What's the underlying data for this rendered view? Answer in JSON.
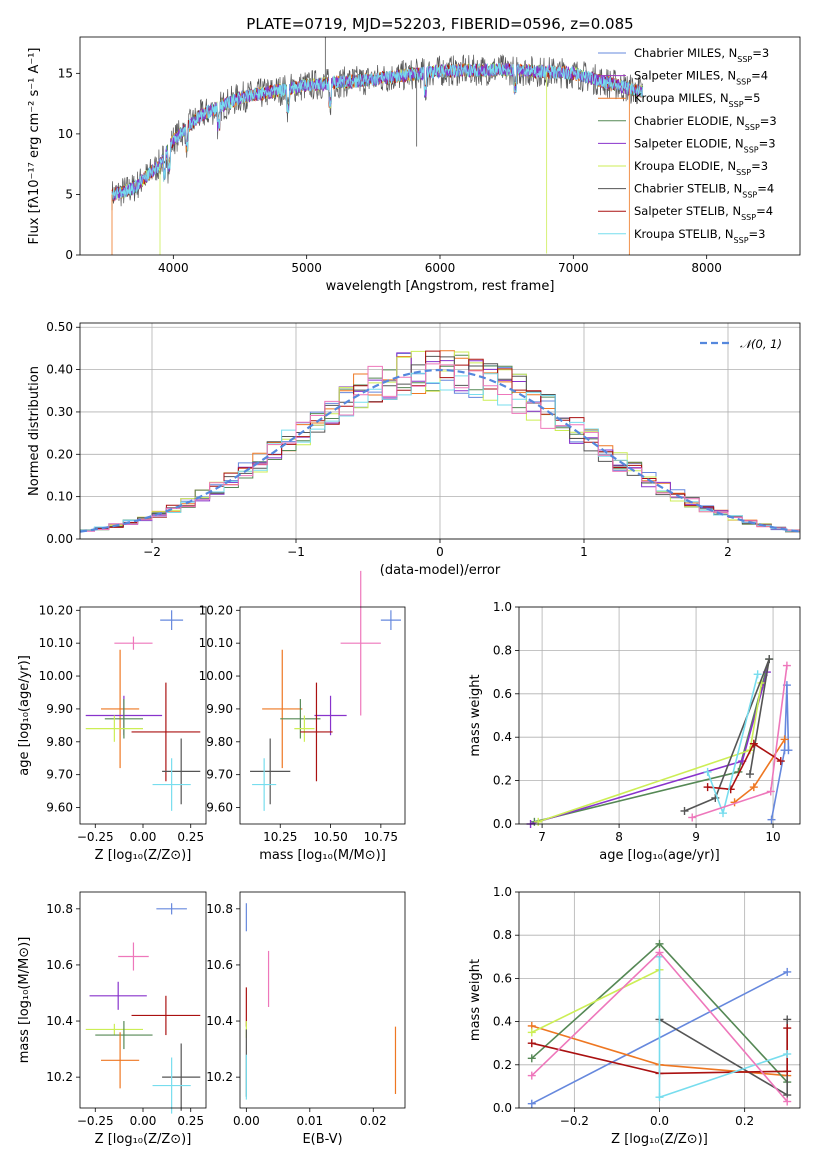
{
  "title": "PLATE=0719, MJD=52203, FIBERID=0596, z=0.085",
  "colors": {
    "Chabrier MILES": "#6688dd",
    "Salpeter MILES": "#9933bb",
    "Kroupa MILES": "#ee7722",
    "Chabrier ELODIE": "#558855",
    "Salpeter ELODIE": "#8833cc",
    "Kroupa ELODIE": "#ccee55",
    "Chabrier STELIB": "#555555",
    "Salpeter STELIB": "#aa1111",
    "Kroupa STELIB": "#77ddee",
    "extra": "#ee77bb",
    "gauss": "#5588dd"
  },
  "chart_data": [
    {
      "type": "line",
      "xlabel": "wavelength [Angstrom, rest frame]",
      "ylabel": "Flux [fλ10⁻¹⁷ erg cm⁻² s⁻¹ A⁻¹]",
      "xlim": [
        3300,
        8700
      ],
      "ylim": [
        0,
        18
      ],
      "xticks": [
        4000,
        5000,
        6000,
        7000,
        8000
      ],
      "yticks": [
        0,
        5,
        10,
        15
      ],
      "grid": false,
      "legend_position": "right",
      "legend": [
        {
          "name": "Chabrier MILES",
          "nssp": "3"
        },
        {
          "name": "Salpeter MILES",
          "nssp": "4"
        },
        {
          "name": "Kroupa MILES",
          "nssp": "5"
        },
        {
          "name": "Chabrier ELODIE",
          "nssp": "3"
        },
        {
          "name": "Salpeter ELODIE",
          "nssp": "3"
        },
        {
          "name": "Kroupa ELODIE",
          "nssp": "3"
        },
        {
          "name": "Chabrier STELIB",
          "nssp": "4"
        },
        {
          "name": "Salpeter STELIB",
          "nssp": "4"
        },
        {
          "name": "Kroupa STELIB",
          "nssp": "3"
        }
      ],
      "continuum": {
        "x": [
          3550,
          3700,
          3900,
          4000,
          4200,
          4500,
          5000,
          5500,
          6000,
          6500,
          7000,
          7500
        ],
        "y": [
          5,
          5.5,
          7.5,
          9.5,
          11.5,
          13.0,
          14.0,
          14.5,
          15.2,
          15.3,
          15.0,
          13.5
        ]
      }
    },
    {
      "type": "line",
      "xlabel": "(data-model)/error",
      "ylabel": "Normed distribution",
      "xlim": [
        -2.5,
        2.5
      ],
      "ylim": [
        0,
        0.51
      ],
      "xticks": [
        -2,
        -1,
        0,
        1,
        2
      ],
      "yticks": [
        0.0,
        0.1,
        0.2,
        0.3,
        0.4,
        0.5
      ],
      "grid": true,
      "legend_position": "top-right",
      "gauss_label": "𝒩(0, 1)"
    },
    {
      "type": "scatter",
      "xlabel": "Z [log₁₀(Z/Z⊙)]",
      "ylabel": "age  [log₁₀(age/yr)]",
      "xlim": [
        -0.33,
        0.33
      ],
      "ylim": [
        9.55,
        10.21
      ],
      "xticks": [
        -0.25,
        0.0,
        0.25
      ],
      "yticks": [
        9.6,
        9.7,
        9.8,
        9.9,
        10.0,
        10.1,
        10.2
      ],
      "grid": false,
      "points": [
        {
          "c": "Chabrier MILES",
          "x": 0.15,
          "y": 10.17,
          "ex": 0.06,
          "ey": 0.03
        },
        {
          "c": "extra",
          "x": -0.05,
          "y": 10.1,
          "ex": 0.1,
          "ey": 0.02
        },
        {
          "c": "Kroupa MILES",
          "x": -0.12,
          "y": 9.9,
          "ex": 0.1,
          "ey": 0.18
        },
        {
          "c": "Salpeter ELODIE",
          "x": -0.1,
          "y": 9.88,
          "ex": 0.2,
          "ey": 0.06
        },
        {
          "c": "Chabrier ELODIE",
          "x": -0.1,
          "y": 9.87,
          "ex": 0.1,
          "ey": 0.06
        },
        {
          "c": "Kroupa ELODIE",
          "x": -0.15,
          "y": 9.84,
          "ex": 0.15,
          "ey": 0.04
        },
        {
          "c": "Salpeter STELIB",
          "x": 0.12,
          "y": 9.83,
          "ex": 0.18,
          "ey": 0.15
        },
        {
          "c": "Chabrier STELIB",
          "x": 0.2,
          "y": 9.71,
          "ex": 0.1,
          "ey": 0.1
        },
        {
          "c": "Kroupa STELIB",
          "x": 0.15,
          "y": 9.67,
          "ex": 0.1,
          "ey": 0.08
        }
      ]
    },
    {
      "type": "scatter",
      "xlabel": "mass [log₁₀(M/M⊙)]",
      "ylabel": "",
      "xlim": [
        10.05,
        10.87
      ],
      "ylim": [
        9.55,
        10.21
      ],
      "xticks": [
        10.25,
        10.5,
        10.75
      ],
      "yticks": [
        9.6,
        9.7,
        9.8,
        9.9,
        10.0,
        10.1,
        10.2
      ],
      "grid": false,
      "points": [
        {
          "c": "Chabrier MILES",
          "x": 10.8,
          "y": 10.17,
          "ex": 0.05,
          "ey": 0.03
        },
        {
          "c": "extra",
          "x": 10.65,
          "y": 10.1,
          "ex": 0.1,
          "ey": 0.22
        },
        {
          "c": "Kroupa MILES",
          "x": 10.26,
          "y": 9.9,
          "ex": 0.1,
          "ey": 0.18
        },
        {
          "c": "Salpeter ELODIE",
          "x": 10.5,
          "y": 9.88,
          "ex": 0.08,
          "ey": 0.06
        },
        {
          "c": "Chabrier ELODIE",
          "x": 10.35,
          "y": 9.87,
          "ex": 0.1,
          "ey": 0.06
        },
        {
          "c": "Kroupa ELODIE",
          "x": 10.37,
          "y": 9.84,
          "ex": 0.05,
          "ey": 0.04
        },
        {
          "c": "Salpeter STELIB",
          "x": 10.43,
          "y": 9.83,
          "ex": 0.08,
          "ey": 0.15
        },
        {
          "c": "Chabrier STELIB",
          "x": 10.2,
          "y": 9.71,
          "ex": 0.1,
          "ey": 0.1
        },
        {
          "c": "Kroupa STELIB",
          "x": 10.17,
          "y": 9.67,
          "ex": 0.06,
          "ey": 0.08
        }
      ]
    },
    {
      "type": "line",
      "xlabel": "age  [log₁₀(age/yr)]",
      "ylabel": "mass weight",
      "xlim": [
        6.7,
        10.35
      ],
      "ylim": [
        0,
        1.0
      ],
      "xticks": [
        7,
        8,
        9,
        10
      ],
      "yticks": [
        0.0,
        0.2,
        0.4,
        0.6,
        0.8,
        1.0
      ],
      "grid": true,
      "series": [
        {
          "c": "Chabrier MILES",
          "x": [
            9.98,
            10.15,
            10.18,
            10.2
          ],
          "y": [
            0.02,
            0.34,
            0.64,
            0.34
          ]
        },
        {
          "c": "Kroupa MILES",
          "x": [
            9.5,
            9.75,
            10.15
          ],
          "y": [
            0.1,
            0.17,
            0.39
          ]
        },
        {
          "c": "Chabrier ELODIE",
          "x": [
            6.9,
            9.55,
            9.95
          ],
          "y": [
            0.01,
            0.24,
            0.76
          ]
        },
        {
          "c": "Salpeter ELODIE",
          "x": [
            6.85,
            9.6,
            9.92
          ],
          "y": [
            0.0,
            0.29,
            0.7
          ]
        },
        {
          "c": "Kroupa ELODIE",
          "x": [
            6.95,
            9.7,
            9.85
          ],
          "y": [
            0.01,
            0.34,
            0.65
          ]
        },
        {
          "c": "Chabrier STELIB",
          "x": [
            8.85,
            9.25,
            9.95,
            9.7
          ],
          "y": [
            0.06,
            0.12,
            0.76,
            0.23
          ]
        },
        {
          "c": "Salpeter STELIB",
          "x": [
            9.15,
            9.45,
            9.75,
            10.1
          ],
          "y": [
            0.17,
            0.16,
            0.37,
            0.29
          ]
        },
        {
          "c": "Kroupa STELIB",
          "x": [
            9.15,
            9.35,
            9.8
          ],
          "y": [
            0.24,
            0.05,
            0.69
          ]
        },
        {
          "c": "extra",
          "x": [
            8.95,
            9.97,
            10.18
          ],
          "y": [
            0.03,
            0.15,
            0.73
          ]
        }
      ]
    },
    {
      "type": "scatter",
      "xlabel": "Z [log₁₀(Z/Z⊙)]",
      "ylabel": "mass [log₁₀(M/M⊙)]",
      "xlim": [
        -0.33,
        0.33
      ],
      "ylim": [
        10.09,
        10.86
      ],
      "xticks": [
        -0.25,
        0.0,
        0.25
      ],
      "yticks": [
        10.2,
        10.4,
        10.6,
        10.8
      ],
      "grid": false,
      "points": [
        {
          "c": "Chabrier MILES",
          "x": 0.15,
          "y": 10.8,
          "ex": 0.08,
          "ey": 0.02
        },
        {
          "c": "extra",
          "x": -0.05,
          "y": 10.63,
          "ex": 0.08,
          "ey": 0.05
        },
        {
          "c": "Salpeter ELODIE",
          "x": -0.13,
          "y": 10.49,
          "ex": 0.15,
          "ey": 0.05
        },
        {
          "c": "Salpeter STELIB",
          "x": 0.12,
          "y": 10.42,
          "ex": 0.18,
          "ey": 0.07
        },
        {
          "c": "Kroupa ELODIE",
          "x": -0.15,
          "y": 10.37,
          "ex": 0.15,
          "ey": 0.02
        },
        {
          "c": "Chabrier ELODIE",
          "x": -0.1,
          "y": 10.35,
          "ex": 0.15,
          "ey": 0.05
        },
        {
          "c": "Kroupa MILES",
          "x": -0.12,
          "y": 10.26,
          "ex": 0.1,
          "ey": 0.1
        },
        {
          "c": "Chabrier STELIB",
          "x": 0.2,
          "y": 10.2,
          "ex": 0.1,
          "ey": 0.12
        },
        {
          "c": "Kroupa STELIB",
          "x": 0.15,
          "y": 10.17,
          "ex": 0.1,
          "ey": 0.1
        }
      ]
    },
    {
      "type": "scatter",
      "xlabel": "E(B-V)",
      "ylabel": "",
      "xlim": [
        -0.001,
        0.025
      ],
      "ylim": [
        10.09,
        10.86
      ],
      "xticks": [
        0.0,
        0.01,
        0.02
      ],
      "yticks": [
        10.2,
        10.4,
        10.6,
        10.8
      ],
      "grid": false,
      "points": [
        {
          "c": "Chabrier MILES",
          "x": 0.0,
          "y": 10.77,
          "ex": 0,
          "ey": 0.05
        },
        {
          "c": "extra",
          "x": 0.0035,
          "y": 10.55,
          "ex": 0,
          "ey": 0.1
        },
        {
          "c": "Salpeter STELIB",
          "x": 0.0,
          "y": 10.45,
          "ex": 0,
          "ey": 0.07
        },
        {
          "c": "Kroupa ELODIE",
          "x": 0.0,
          "y": 10.37,
          "ex": 0,
          "ey": 0.03
        },
        {
          "c": "Chabrier STELIB",
          "x": 0.0,
          "y": 10.25,
          "ex": 0,
          "ey": 0.12
        },
        {
          "c": "Kroupa STELIB",
          "x": 0.0,
          "y": 10.2,
          "ex": 0,
          "ey": 0.08
        },
        {
          "c": "Kroupa MILES",
          "x": 0.0235,
          "y": 10.26,
          "ex": 0,
          "ey": 0.12
        }
      ]
    },
    {
      "type": "line",
      "xlabel": "Z [log₁₀(Z/Z⊙)]",
      "ylabel": "mass weight",
      "xlim": [
        -0.33,
        0.33
      ],
      "ylim": [
        0,
        1.0
      ],
      "xticks": [
        -0.2,
        0.0,
        0.2
      ],
      "yticks": [
        0.0,
        0.2,
        0.4,
        0.6,
        0.8,
        1.0
      ],
      "grid": true,
      "series": [
        {
          "c": "Chabrier MILES",
          "x": [
            -0.3,
            0.3
          ],
          "y": [
            0.02,
            0.63
          ]
        },
        {
          "c": "Kroupa MILES",
          "x": [
            -0.3,
            0.0,
            0.3
          ],
          "y": [
            0.38,
            0.2,
            0.15
          ]
        },
        {
          "c": "Chabrier ELODIE",
          "x": [
            -0.3,
            0.0,
            0.3
          ],
          "y": [
            0.23,
            0.76,
            0.12
          ]
        },
        {
          "c": "Kroupa ELODIE",
          "x": [
            -0.3,
            0.0
          ],
          "y": [
            0.35,
            0.64
          ]
        },
        {
          "c": "Chabrier STELIB",
          "x": [
            0.0,
            0.3,
            0.3
          ],
          "y": [
            0.41,
            0.06,
            0.41
          ]
        },
        {
          "c": "Salpeter STELIB",
          "x": [
            -0.3,
            0.0,
            0.3,
            0.3
          ],
          "y": [
            0.3,
            0.16,
            0.17,
            0.37
          ]
        },
        {
          "c": "Kroupa STELIB",
          "x": [
            0.0,
            0.0,
            0.3
          ],
          "y": [
            0.7,
            0.05,
            0.25
          ]
        },
        {
          "c": "extra",
          "x": [
            -0.3,
            0.0,
            0.3
          ],
          "y": [
            0.15,
            0.72,
            0.03
          ]
        }
      ]
    }
  ]
}
